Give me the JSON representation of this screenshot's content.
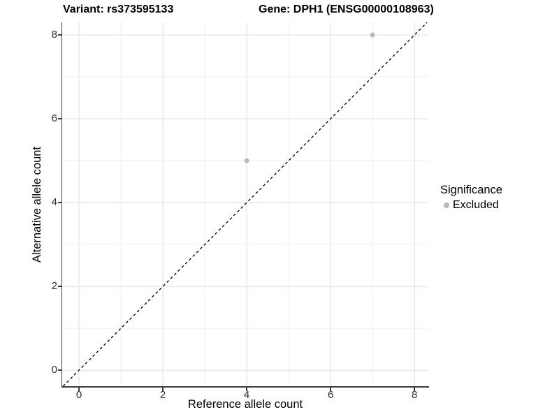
{
  "chart_data": {
    "type": "scatter",
    "title_left": "Variant: rs373595133",
    "title_right": "Gene: DPH1 (ENSG00000108963)",
    "xlabel": "Reference allele count",
    "ylabel": "Alternative allele count",
    "xlim": [
      -0.4,
      8.33
    ],
    "ylim": [
      -0.38,
      8.3
    ],
    "x_ticks": [
      0,
      2,
      4,
      6,
      8
    ],
    "y_ticks": [
      0,
      2,
      4,
      6,
      8
    ],
    "minor_x": [
      1,
      3,
      5,
      7
    ],
    "minor_y": [
      1,
      3,
      5,
      7
    ],
    "grid": true,
    "series": [
      {
        "name": "Excluded",
        "color": "#b8b8b8",
        "point_radius": 3.5,
        "points": [
          {
            "x": 4,
            "y": 5
          },
          {
            "x": 7,
            "y": 8
          }
        ]
      }
    ],
    "identity_line": {
      "equation": "y = x",
      "style": "dashed",
      "color": "#000000"
    },
    "legend": {
      "title": "Significance",
      "position": "right",
      "items": [
        {
          "label": "Excluded",
          "color": "#b8b8b8"
        }
      ]
    },
    "colors": {
      "background": "#ffffff",
      "grid_major": "#e2e2e2",
      "grid_minor": "#efefef",
      "axis": "#3c3c3c",
      "tick_label": "#2f2f2f"
    }
  }
}
